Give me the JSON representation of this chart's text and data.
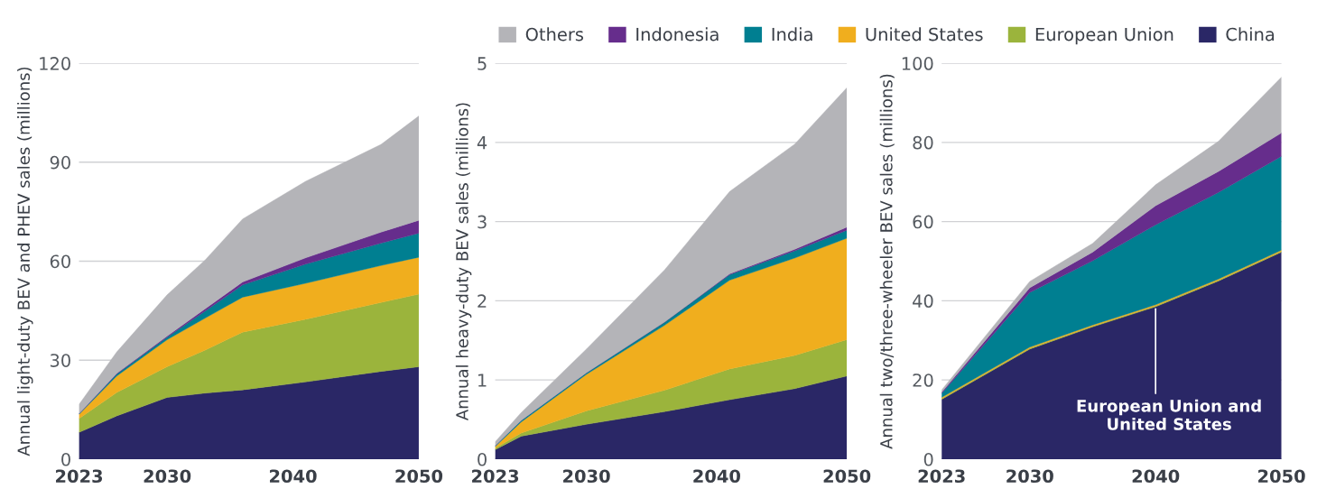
{
  "chart_data": [
    {
      "type": "area",
      "stacked": true,
      "ylabel": "Annual light-duty BEV and PHEV sales (millions)",
      "x": [
        2023,
        2026,
        2030,
        2033,
        2036,
        2041,
        2047,
        2050
      ],
      "xlim": [
        2023,
        2050
      ],
      "xticks": [
        2023,
        2030,
        2040,
        2050
      ],
      "ylim": [
        0,
        120
      ],
      "yticks": [
        0,
        30,
        60,
        90,
        120
      ],
      "grid": "y",
      "series": [
        {
          "color": "#2a2766",
          "values": [
            8.1,
            13.1,
            18.7,
            20,
            21,
            23.4,
            26.6,
            28
          ]
        },
        {
          "color": "#9bb43c",
          "values": [
            4.2,
            7.1,
            9.3,
            13,
            17.5,
            19,
            20.9,
            22
          ]
        },
        {
          "color": "#f0ae1e",
          "values": [
            1.3,
            5,
            8.2,
            9.7,
            10.6,
            10.9,
            11.2,
            11.2
          ]
        },
        {
          "color": "#007f91",
          "values": [
            0.1,
            0.6,
            0.8,
            2.1,
            3.7,
            5.8,
            6.8,
            7.3
          ]
        },
        {
          "color": "#662d8c",
          "values": [
            0.1,
            0.2,
            0.3,
            0.7,
            0.9,
            1.9,
            3.3,
            3.9
          ]
        },
        {
          "color": "#b4b4b8",
          "values": [
            2.8,
            6.5,
            12.5,
            14.8,
            19.1,
            23.2,
            26.6,
            31.6
          ]
        }
      ]
    },
    {
      "type": "area",
      "stacked": true,
      "ylabel": "Annual heavy-duty BEV sales (millions)",
      "x": [
        2023,
        2025,
        2030,
        2036,
        2041,
        2046,
        2050
      ],
      "xlim": [
        2023,
        2050
      ],
      "xticks": [
        2023,
        2030,
        2040,
        2050
      ],
      "ylim": [
        0,
        5
      ],
      "yticks": [
        0,
        1,
        2,
        3,
        4,
        5
      ],
      "grid": "y",
      "legend": "top",
      "series": [
        {
          "name": "China",
          "color": "#2a2766",
          "values": [
            0.12,
            0.29,
            0.44,
            0.6,
            0.75,
            0.89,
            1.05
          ]
        },
        {
          "name": "European Union",
          "color": "#9bb43c",
          "values": [
            0.02,
            0.04,
            0.17,
            0.27,
            0.39,
            0.42,
            0.46
          ]
        },
        {
          "name": "United States",
          "color": "#f0ae1e",
          "values": [
            0.02,
            0.14,
            0.46,
            0.82,
            1.12,
            1.23,
            1.28
          ]
        },
        {
          "name": "India",
          "color": "#007f91",
          "values": [
            0.01,
            0.02,
            0.02,
            0.04,
            0.07,
            0.09,
            0.1
          ]
        },
        {
          "name": "Indonesia",
          "color": "#662d8c",
          "values": [
            0,
            0,
            0,
            0,
            0.01,
            0.02,
            0.04
          ]
        },
        {
          "name": "Others",
          "color": "#b4b4b8",
          "values": [
            0.05,
            0.1,
            0.3,
            0.66,
            1.04,
            1.33,
            1.76
          ]
        }
      ]
    },
    {
      "type": "area",
      "stacked": true,
      "ylabel": "Annual two/three-wheeler BEV sales (millions)",
      "x": [
        2023,
        2030,
        2035,
        2040,
        2045,
        2050
      ],
      "xlim": [
        2023,
        2050
      ],
      "xticks": [
        2023,
        2030,
        2040,
        2050
      ],
      "ylim": [
        0,
        100
      ],
      "yticks": [
        0,
        20,
        40,
        60,
        80,
        100
      ],
      "grid": "y",
      "annotations": [
        {
          "text": "European Union and United States",
          "x": 2040,
          "y": 38.6
        }
      ],
      "series": [
        {
          "color": "#2a2766",
          "values": [
            15.1,
            27.8,
            33.4,
            38.5,
            45,
            52.3
          ]
        },
        {
          "color": "#9bb43c",
          "values": [
            0.2,
            0.2,
            0.2,
            0.2,
            0.2,
            0.2
          ]
        },
        {
          "color": "#f0ae1e",
          "values": [
            0.3,
            0.3,
            0.3,
            0.3,
            0.3,
            0.3
          ]
        },
        {
          "color": "#007f91",
          "values": [
            1.0,
            13.8,
            16.2,
            20.2,
            21.9,
            23.7
          ]
        },
        {
          "color": "#662d8c",
          "values": [
            0.3,
            1.2,
            2.2,
            4.8,
            5.3,
            5.9
          ]
        },
        {
          "color": "#b4b4b8",
          "values": [
            0.6,
            1.6,
            2.2,
            5.3,
            7.6,
            14.1
          ]
        }
      ]
    }
  ]
}
